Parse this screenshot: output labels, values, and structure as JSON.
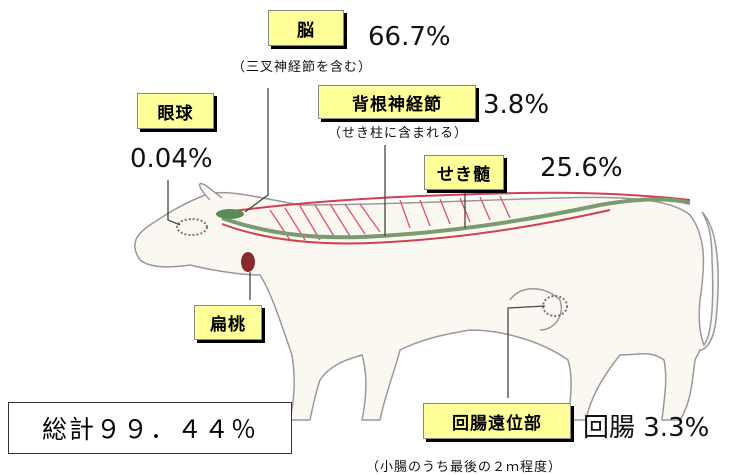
{
  "brain": {
    "label": "脳",
    "percent": "66.7%",
    "note": "（三叉神経節を含む）"
  },
  "eye": {
    "label": "眼球",
    "percent": "0.04%"
  },
  "dorsal_root_ganglia": {
    "label": "背根神経節",
    "percent": "3.8%",
    "note": "（せき柱に含まれる）"
  },
  "spinal_cord": {
    "label": "せき髄",
    "percent": "25.6%"
  },
  "tonsil": {
    "label": "扁桃"
  },
  "distal_ileum": {
    "label": "回腸遠位部",
    "percent": "回腸 3.3%",
    "note": "（小腸のうち最後の２ｍ程度）"
  },
  "total": "総計９９．４４％"
}
